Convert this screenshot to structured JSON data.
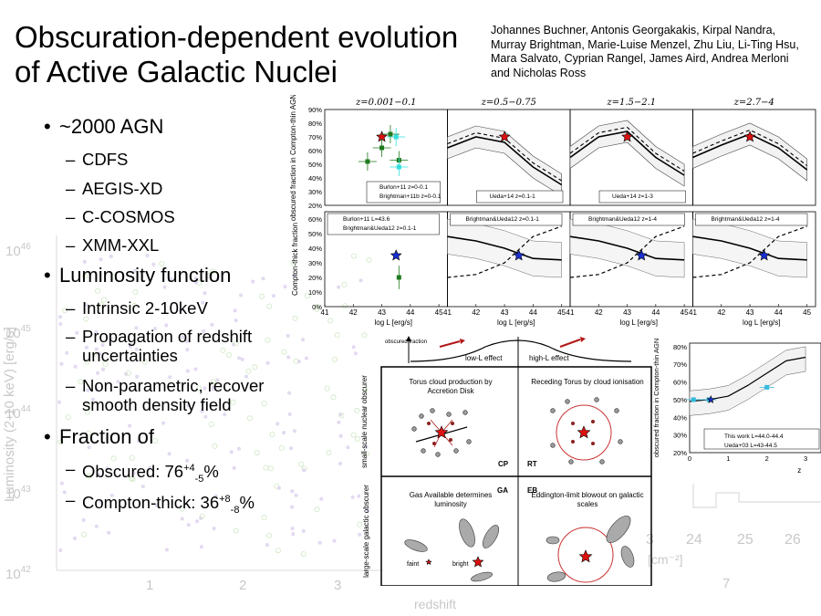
{
  "slide": {
    "title": "Obscuration-dependent evolution of Active Galactic Nuclei",
    "authors": "Johannes Buchner, Antonis Georgakakis, Kirpal Nandra, Murray Brightman, Marie-Luise Menzel, Zhu Liu, Li-Ting Hsu, Mara Salvato, Cyprian Rangel, James Aird, Andrea Merloni and Nicholas Ross"
  },
  "bullets": {
    "agn": "~2000 AGN",
    "agn_items": [
      "CDFS",
      "AEGIS-XD",
      "C-COSMOS",
      "XMM-XXL"
    ],
    "lumfunc": "Luminosity function",
    "lumfunc_items": [
      "Intrinsic 2-10keV",
      "Propagation of redshift uncertainties",
      "Non-parametric, recover smooth density field"
    ],
    "fraction": "Fraction of",
    "obscured_label": "Obscured: 76",
    "obscured_sup": "+4",
    "obscured_sub": "-5",
    "obscured_unit": "%",
    "ct_label": "Compton-thick: 36",
    "ct_sup": "+8",
    "ct_sub": "-8",
    "ct_unit": "%"
  },
  "background_plot": {
    "ylabel": "Luminosity (2-10 keV) [erg/s]",
    "yticks": [
      "10",
      "10",
      "10",
      "10",
      "10"
    ],
    "yexps": [
      "46",
      "45",
      "44",
      "43",
      "42"
    ],
    "xticks": [
      "1",
      "2",
      "3"
    ],
    "xlabel": "redshift",
    "right_xticks": [
      "3",
      "24",
      "25",
      "26"
    ],
    "right_unit": "[cm⁻²]",
    "right_z7": "7"
  },
  "chart_data": [
    {
      "type": "scatter",
      "title": "z=0.001−0.1 / z=0.5−0.75 / z=1.5−2.1 / z=2.7−4",
      "panel_titles": [
        "z=0.001−0.1",
        "z=0.5−0.75",
        "z=1.5−2.1",
        "z=2.7−4"
      ],
      "top_ylabel": "obscured fraction in Compton-thin AGN",
      "bottom_ylabel": "Compton-thick fraction",
      "top_yticks": [
        "90%",
        "80%",
        "70%",
        "60%",
        "50%",
        "40%",
        "30%",
        "20%"
      ],
      "bottom_yticks": [
        "60%",
        "50%",
        "40%",
        "30%",
        "20%",
        "10%",
        "0%"
      ],
      "xticks": [
        "41",
        "42",
        "43",
        "44",
        "45"
      ],
      "xlabel": "log L [erg/s]",
      "top_legends": [
        [
          "Burlon+11 z=0-0.1",
          "Brightman+11b z=0-0.1"
        ],
        [
          "Ueda+14 z=0.1-1"
        ],
        [
          "Ueda+14 z=1-3"
        ],
        []
      ],
      "bottom_legends": [
        [
          "Burlon+11 L=43.6",
          "Brightman&Ueda12 z=0.1-1"
        ],
        [
          "Brightman&Ueda12 z=0.1-1"
        ],
        [
          "Brightman&Ueda12 z=1-4"
        ],
        [
          "Brightman&Ueda12 z=1-4"
        ]
      ],
      "top_series": [
        {
          "x": [
            41,
            42,
            43,
            44,
            45
          ],
          "values": [
            null,
            null,
            null,
            null,
            null
          ]
        },
        {
          "x": [
            41,
            42,
            43,
            44,
            45
          ],
          "values": [
            0.62,
            0.7,
            0.66,
            0.48,
            0.35
          ]
        },
        {
          "x": [
            41,
            42,
            43,
            44,
            45
          ],
          "values": [
            0.55,
            0.7,
            0.74,
            0.55,
            0.42
          ]
        },
        {
          "x": [
            41,
            42,
            43,
            44,
            45
          ],
          "values": [
            0.55,
            0.64,
            0.72,
            0.62,
            0.46
          ]
        }
      ],
      "top_markers_red_star": [
        [
          43.0,
          0.7
        ],
        [
          43.0,
          0.7
        ],
        [
          43.0,
          0.7
        ],
        [
          43.0,
          0.7
        ]
      ],
      "bottom_markers_blue_star": [
        [
          43.5,
          0.35
        ],
        [
          43.5,
          0.35
        ],
        [
          43.5,
          0.35
        ],
        [
          43.5,
          0.35
        ]
      ]
    },
    {
      "type": "line",
      "ylabel": "obscured fraction in Compton-thin AGN",
      "yticks": [
        "80%",
        "70%",
        "60%",
        "50%",
        "40%",
        "30%",
        "20%"
      ],
      "xticks": [
        "0",
        "1",
        "2",
        "3"
      ],
      "xlabel": "z",
      "legend": [
        "This work L=44.0-44.4",
        "Ueda+03 L=43-44.5"
      ],
      "series": [
        {
          "name": "This work L=44.0-44.4",
          "x": [
            0,
            0.5,
            1,
            1.5,
            2,
            2.5,
            3
          ],
          "values": [
            0.49,
            0.5,
            0.52,
            0.58,
            0.65,
            0.72,
            0.74
          ]
        }
      ]
    }
  ],
  "diagram": {
    "top_axis": "obscured fraction",
    "low_l": "low-L effect",
    "high_l": "high-L effect",
    "row1_label": "small-scale nuclear obscurer",
    "row2_label": "large-scale galactic obscurer",
    "cells": [
      {
        "title": "Torus cloud production by Accretion Disk",
        "tag": "CP"
      },
      {
        "title": "Receding Torus by cloud ionisation",
        "tag": "RT"
      },
      {
        "title": "Gas Available determines luminosity",
        "tag": "GA"
      },
      {
        "title": "Eddington-limit blowout on galactic scales",
        "tag": "EB"
      }
    ],
    "faint": "faint",
    "bright": "bright"
  },
  "colors": {
    "red_star": "#dd1111",
    "blue_star": "#1a2fd0",
    "green": "#1d7a1d",
    "cyan": "#33dddd",
    "ueda": "#f0b800"
  }
}
